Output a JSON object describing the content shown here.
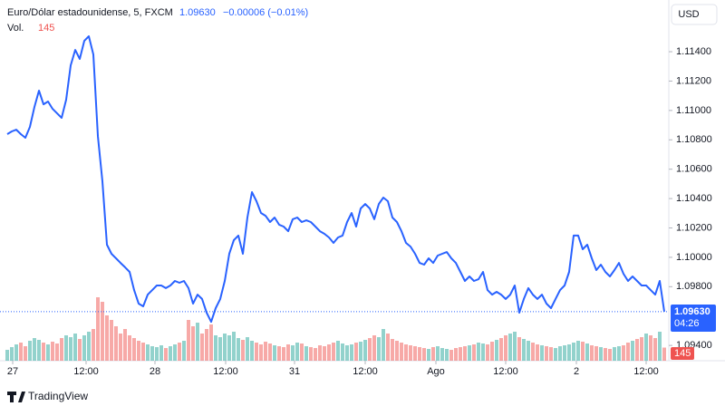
{
  "header": {
    "title": "Euro/Dólar estadounidense, 5, FXCM",
    "last": "1.09630",
    "change": "−0.00006 (−0.01%)",
    "volume_label": "Vol.",
    "volume": "145",
    "currency": "USD",
    "countdown": "04:26",
    "brand": "TradingView"
  },
  "chart_data": {
    "type": "line",
    "xlim": [
      0,
      145
    ],
    "xticks": [
      {
        "value": 1.2,
        "label": "27"
      },
      {
        "value": 17.4,
        "label": "12:00"
      },
      {
        "value": 32.6,
        "label": "28"
      },
      {
        "value": 48.2,
        "label": "12:00"
      },
      {
        "value": 63.4,
        "label": "31"
      },
      {
        "value": 79,
        "label": "12:00"
      },
      {
        "value": 94.6,
        "label": "Ago"
      },
      {
        "value": 110,
        "label": "12:00"
      },
      {
        "value": 125.6,
        "label": "2"
      },
      {
        "value": 141,
        "label": "12:00"
      }
    ],
    "ylim": [
      1.09296,
      1.11752
    ],
    "yticks": [
      {
        "value": 1.114,
        "label": "1.11400"
      },
      {
        "value": 1.112,
        "label": "1.11200"
      },
      {
        "value": 1.11,
        "label": "1.11000"
      },
      {
        "value": 1.108,
        "label": "1.10800"
      },
      {
        "value": 1.106,
        "label": "1.10600"
      },
      {
        "value": 1.104,
        "label": "1.10400"
      },
      {
        "value": 1.102,
        "label": "1.10200"
      },
      {
        "value": 1.1,
        "label": "1.10000"
      },
      {
        "value": 1.098,
        "label": "1.09800"
      },
      {
        "value": 1.094,
        "label": "1.09400"
      }
    ],
    "series": [
      {
        "name": "EURUSD",
        "color": "#2962ff",
        "values": [
          1.10839,
          1.10857,
          1.10869,
          1.10839,
          1.10814,
          1.10888,
          1.11024,
          1.11135,
          1.11042,
          1.11061,
          1.11011,
          1.1098,
          1.1095,
          1.11073,
          1.11307,
          1.11412,
          1.11351,
          1.11474,
          1.11505,
          1.11381,
          1.10826,
          1.10518,
          1.10086,
          1.10024,
          1.09993,
          1.09962,
          1.09932,
          1.09901,
          1.09777,
          1.09685,
          1.09666,
          1.09746,
          1.09777,
          1.09808,
          1.09808,
          1.0979,
          1.09808,
          1.09839,
          1.09827,
          1.09839,
          1.0979,
          1.09685,
          1.09746,
          1.09716,
          1.09623,
          1.09561,
          1.09654,
          1.09716,
          1.09839,
          1.10024,
          1.10117,
          1.10148,
          1.10024,
          1.10271,
          1.10444,
          1.10382,
          1.10302,
          1.10283,
          1.1024,
          1.10271,
          1.10222,
          1.10209,
          1.10178,
          1.10259,
          1.10271,
          1.1024,
          1.10252,
          1.1024,
          1.10209,
          1.10178,
          1.1016,
          1.10135,
          1.10098,
          1.10135,
          1.10148,
          1.1024,
          1.10302,
          1.10209,
          1.10333,
          1.10363,
          1.10333,
          1.10259,
          1.10363,
          1.10407,
          1.10382,
          1.10271,
          1.1024,
          1.10178,
          1.10098,
          1.10073,
          1.10024,
          1.09962,
          1.0995,
          1.09993,
          1.09962,
          1.10012,
          1.10024,
          1.10036,
          1.09993,
          1.09962,
          1.09901,
          1.09839,
          1.0987,
          1.09839,
          1.09851,
          1.09901,
          1.09777,
          1.09746,
          1.09765,
          1.09746,
          1.09716,
          1.09746,
          1.09808,
          1.09623,
          1.09716,
          1.0979,
          1.09746,
          1.09716,
          1.09746,
          1.09685,
          1.09654,
          1.09716,
          1.09777,
          1.09808,
          1.09901,
          1.10148,
          1.10148,
          1.10055,
          1.10086,
          1.09993,
          1.09913,
          1.0995,
          1.09901,
          1.0987,
          1.09913,
          1.09962,
          1.09888,
          1.09839,
          1.0987,
          1.09839,
          1.09808,
          1.09808,
          1.09777,
          1.09746,
          1.09839,
          1.0963
        ]
      }
    ],
    "volume": {
      "up_color": "#26a69a",
      "down_color": "#ef5350",
      "ylim": [
        0,
        1000
      ],
      "values": [
        120,
        150,
        180,
        200,
        160,
        220,
        250,
        230,
        200,
        180,
        210,
        190,
        250,
        280,
        260,
        300,
        240,
        280,
        320,
        350,
        700,
        650,
        500,
        450,
        380,
        300,
        350,
        280,
        250,
        220,
        200,
        180,
        160,
        150,
        170,
        140,
        160,
        180,
        200,
        220,
        450,
        380,
        420,
        300,
        350,
        400,
        280,
        260,
        300,
        280,
        320,
        250,
        230,
        260,
        220,
        200,
        180,
        210,
        190,
        170,
        160,
        150,
        180,
        170,
        200,
        190,
        160,
        150,
        140,
        170,
        160,
        180,
        200,
        220,
        190,
        170,
        180,
        200,
        210,
        230,
        250,
        280,
        260,
        350,
        300,
        240,
        220,
        200,
        180,
        170,
        160,
        150,
        140,
        130,
        150,
        160,
        140,
        130,
        120,
        140,
        150,
        160,
        170,
        180,
        200,
        190,
        180,
        210,
        230,
        250,
        280,
        300,
        320,
        260,
        240,
        220,
        200,
        180,
        170,
        160,
        150,
        140,
        160,
        170,
        180,
        200,
        220,
        210,
        190,
        170,
        160,
        150,
        140,
        130,
        150,
        160,
        170,
        200,
        220,
        240,
        260,
        300,
        280,
        250,
        320,
        145
      ]
    }
  }
}
